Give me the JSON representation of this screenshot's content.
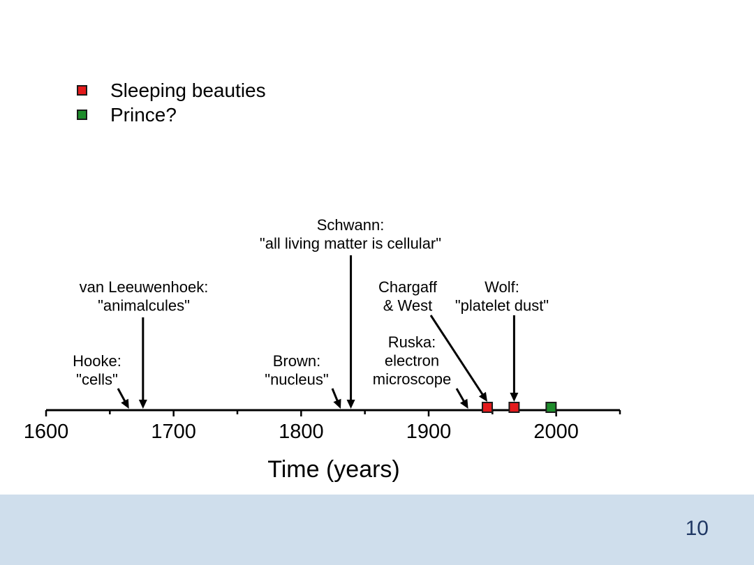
{
  "slide": {
    "page_number": "10",
    "background": "#ffffff",
    "band_color": "#cfdeec",
    "page_number_color": "#203864"
  },
  "chart_data": {
    "type": "scatter",
    "xlabel": "Time (years)",
    "xlim": [
      1600,
      2050
    ],
    "xticks": [
      1600,
      1700,
      1800,
      1900,
      2000
    ],
    "minor_ticks": [
      1650,
      1750,
      1850,
      1950,
      2050
    ],
    "grid": false,
    "legend": "top-left",
    "series": [
      {
        "name": "Sleeping beauties",
        "color": "#e41a1c",
        "x": [
          1946,
          1967
        ]
      },
      {
        "name": "Prince?",
        "color": "#1e8c2b",
        "x": [
          1996
        ]
      }
    ],
    "annotations": [
      {
        "text": [
          "Hooke:",
          "\"cells\""
        ],
        "x": 1665
      },
      {
        "text": [
          "van Leeuwenhoek:",
          "\"animalcules\""
        ],
        "x": 1676
      },
      {
        "text": [
          "Brown:",
          "\"nucleus\""
        ],
        "x": 1831
      },
      {
        "text": [
          "Schwann:",
          "\"all living matter is cellular\""
        ],
        "x": 1839
      },
      {
        "text": [
          "Ruska:",
          "electron",
          "microscope"
        ],
        "x": 1931
      },
      {
        "text": [
          "Chargaff",
          "& West"
        ],
        "x": 1946
      },
      {
        "text": [
          "Wolf:",
          "\"platelet dust\""
        ],
        "x": 1967
      }
    ]
  }
}
